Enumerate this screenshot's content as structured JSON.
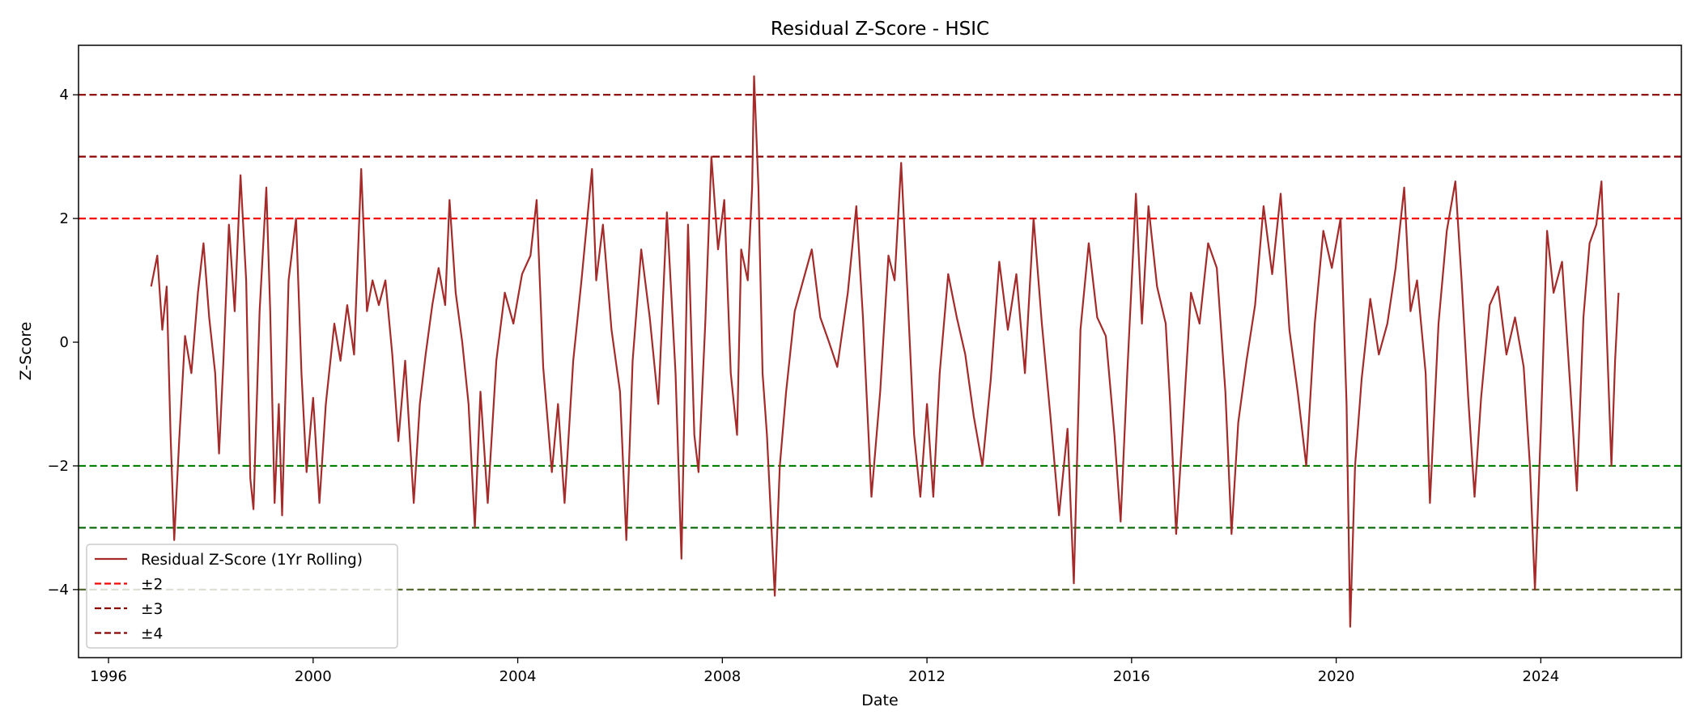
{
  "chart_data": {
    "type": "line",
    "title": "Residual Z-Score - HSIC",
    "xlabel": "Date",
    "ylabel": "Z-Score",
    "xlim": [
      "1995-06-01",
      "2026-10-01"
    ],
    "ylim": [
      -5.1,
      4.8
    ],
    "x_ticks": [
      "1996",
      "2000",
      "2004",
      "2008",
      "2012",
      "2016",
      "2020",
      "2024"
    ],
    "y_ticks": [
      4,
      2,
      0,
      -2,
      -4
    ],
    "y_tick_labels": [
      "4",
      "2",
      "0",
      "−2",
      "−4"
    ],
    "grid": false,
    "legend_position": "lower-left",
    "series": [
      {
        "name": "Residual Z-Score (1Yr Rolling)",
        "color": "#a52a2a",
        "points": [
          [
            "1996-11-01",
            0.9
          ],
          [
            "1996-12-15",
            1.4
          ],
          [
            "1997-01-20",
            0.2
          ],
          [
            "1997-02-20",
            0.9
          ],
          [
            "1997-03-20",
            -1.5
          ],
          [
            "1997-04-15",
            -3.2
          ],
          [
            "1997-05-20",
            -1.6
          ],
          [
            "1997-07-01",
            0.1
          ],
          [
            "1997-08-15",
            -0.5
          ],
          [
            "1997-10-01",
            0.8
          ],
          [
            "1997-11-10",
            1.6
          ],
          [
            "1997-12-20",
            0.4
          ],
          [
            "1998-02-01",
            -0.5
          ],
          [
            "1998-03-01",
            -1.8
          ],
          [
            "1998-04-01",
            -0.3
          ],
          [
            "1998-05-10",
            1.9
          ],
          [
            "1998-06-20",
            0.5
          ],
          [
            "1998-08-01",
            2.7
          ],
          [
            "1998-09-10",
            1.0
          ],
          [
            "1998-10-10",
            -2.2
          ],
          [
            "1998-11-01",
            -2.7
          ],
          [
            "1998-12-15",
            0.5
          ],
          [
            "1999-02-01",
            2.5
          ],
          [
            "1999-03-01",
            0.5
          ],
          [
            "1999-04-01",
            -2.6
          ],
          [
            "1999-05-01",
            -1.0
          ],
          [
            "1999-05-25",
            -2.8
          ],
          [
            "1999-07-10",
            1.0
          ],
          [
            "1999-09-01",
            2.0
          ],
          [
            "1999-10-10",
            -0.5
          ],
          [
            "1999-11-15",
            -2.1
          ],
          [
            "2000-01-01",
            -0.9
          ],
          [
            "2000-02-15",
            -2.6
          ],
          [
            "2000-04-01",
            -1.0
          ],
          [
            "2000-06-01",
            0.3
          ],
          [
            "2000-07-15",
            -0.3
          ],
          [
            "2000-09-01",
            0.6
          ],
          [
            "2000-10-20",
            -0.2
          ],
          [
            "2000-12-10",
            2.8
          ],
          [
            "2001-01-20",
            0.5
          ],
          [
            "2001-03-01",
            1.0
          ],
          [
            "2001-04-15",
            0.6
          ],
          [
            "2001-06-01",
            1.0
          ],
          [
            "2001-07-20",
            -0.2
          ],
          [
            "2001-09-01",
            -1.6
          ],
          [
            "2001-10-20",
            -0.3
          ],
          [
            "2001-12-20",
            -2.6
          ],
          [
            "2002-02-01",
            -1.0
          ],
          [
            "2002-03-15",
            -0.2
          ],
          [
            "2002-05-01",
            0.6
          ],
          [
            "2002-06-15",
            1.2
          ],
          [
            "2002-08-01",
            0.6
          ],
          [
            "2002-09-01",
            2.3
          ],
          [
            "2002-10-15",
            0.8
          ],
          [
            "2002-12-01",
            0.0
          ],
          [
            "2003-01-15",
            -1.0
          ],
          [
            "2003-03-01",
            -3.0
          ],
          [
            "2003-04-10",
            -0.8
          ],
          [
            "2003-06-01",
            -2.6
          ],
          [
            "2003-08-01",
            -0.3
          ],
          [
            "2003-10-01",
            0.8
          ],
          [
            "2003-12-01",
            0.3
          ],
          [
            "2004-02-01",
            1.1
          ],
          [
            "2004-04-01",
            1.4
          ],
          [
            "2004-05-15",
            2.3
          ],
          [
            "2004-07-01",
            -0.4
          ],
          [
            "2004-09-01",
            -2.1
          ],
          [
            "2004-10-15",
            -1.0
          ],
          [
            "2004-12-01",
            -2.6
          ],
          [
            "2005-02-01",
            -0.3
          ],
          [
            "2005-04-01",
            1.0
          ],
          [
            "2005-06-15",
            2.8
          ],
          [
            "2005-07-15",
            1.0
          ],
          [
            "2005-09-01",
            1.9
          ],
          [
            "2005-11-01",
            0.2
          ],
          [
            "2006-01-01",
            -0.8
          ],
          [
            "2006-02-15",
            -3.2
          ],
          [
            "2006-04-01",
            -0.3
          ],
          [
            "2006-06-01",
            1.5
          ],
          [
            "2006-08-01",
            0.4
          ],
          [
            "2006-10-01",
            -1.0
          ],
          [
            "2006-12-01",
            2.1
          ],
          [
            "2007-02-01",
            -0.5
          ],
          [
            "2007-03-15",
            -3.5
          ],
          [
            "2007-05-01",
            1.9
          ],
          [
            "2007-06-15",
            -1.5
          ],
          [
            "2007-07-15",
            -2.1
          ],
          [
            "2007-09-01",
            0.3
          ],
          [
            "2007-10-15",
            3.0
          ],
          [
            "2007-12-01",
            1.5
          ],
          [
            "2008-01-15",
            2.3
          ],
          [
            "2008-03-01",
            -0.5
          ],
          [
            "2008-04-15",
            -1.5
          ],
          [
            "2008-05-15",
            1.5
          ],
          [
            "2008-07-01",
            1.0
          ],
          [
            "2008-08-01",
            2.5
          ],
          [
            "2008-08-15",
            4.3
          ],
          [
            "2008-09-15",
            2.5
          ],
          [
            "2008-10-15",
            -0.5
          ],
          [
            "2008-11-15",
            -1.5
          ],
          [
            "2009-01-10",
            -4.1
          ],
          [
            "2009-02-15",
            -2.0
          ],
          [
            "2009-04-01",
            -0.8
          ],
          [
            "2009-06-01",
            0.5
          ],
          [
            "2009-08-01",
            1.0
          ],
          [
            "2009-10-01",
            1.5
          ],
          [
            "2009-12-01",
            0.4
          ],
          [
            "2010-02-01",
            0.0
          ],
          [
            "2010-04-01",
            -0.4
          ],
          [
            "2010-06-15",
            0.8
          ],
          [
            "2010-08-15",
            2.2
          ],
          [
            "2010-10-01",
            0.4
          ],
          [
            "2010-12-01",
            -2.5
          ],
          [
            "2011-02-01",
            -0.8
          ],
          [
            "2011-04-01",
            1.4
          ],
          [
            "2011-05-15",
            1.0
          ],
          [
            "2011-07-01",
            2.9
          ],
          [
            "2011-08-15",
            0.8
          ],
          [
            "2011-10-01",
            -1.5
          ],
          [
            "2011-11-15",
            -2.5
          ],
          [
            "2012-01-01",
            -1.0
          ],
          [
            "2012-02-15",
            -2.5
          ],
          [
            "2012-04-01",
            -0.5
          ],
          [
            "2012-06-01",
            1.1
          ],
          [
            "2012-08-01",
            0.4
          ],
          [
            "2012-10-01",
            -0.2
          ],
          [
            "2012-12-01",
            -1.2
          ],
          [
            "2013-02-01",
            -2.0
          ],
          [
            "2013-04-01",
            -0.6
          ],
          [
            "2013-06-01",
            1.3
          ],
          [
            "2013-08-01",
            0.2
          ],
          [
            "2013-10-01",
            1.1
          ],
          [
            "2013-12-01",
            -0.5
          ],
          [
            "2014-02-01",
            2.0
          ],
          [
            "2014-04-01",
            0.3
          ],
          [
            "2014-06-01",
            -1.2
          ],
          [
            "2014-08-01",
            -2.8
          ],
          [
            "2014-10-01",
            -1.4
          ],
          [
            "2014-11-15",
            -3.9
          ],
          [
            "2015-01-01",
            0.2
          ],
          [
            "2015-03-01",
            1.6
          ],
          [
            "2015-05-01",
            0.4
          ],
          [
            "2015-07-01",
            0.1
          ],
          [
            "2015-09-01",
            -1.5
          ],
          [
            "2015-10-15",
            -2.9
          ],
          [
            "2015-12-01",
            -0.5
          ],
          [
            "2016-02-01",
            2.4
          ],
          [
            "2016-03-15",
            0.3
          ],
          [
            "2016-05-01",
            2.2
          ],
          [
            "2016-07-01",
            0.9
          ],
          [
            "2016-09-01",
            0.3
          ],
          [
            "2016-10-01",
            -0.9
          ],
          [
            "2016-11-15",
            -3.1
          ],
          [
            "2017-01-01",
            -1.4
          ],
          [
            "2017-03-01",
            0.8
          ],
          [
            "2017-05-01",
            0.3
          ],
          [
            "2017-07-01",
            1.6
          ],
          [
            "2017-09-01",
            1.2
          ],
          [
            "2017-11-01",
            -0.8
          ],
          [
            "2017-12-15",
            -3.1
          ],
          [
            "2018-02-01",
            -1.3
          ],
          [
            "2018-04-01",
            -0.3
          ],
          [
            "2018-06-01",
            0.6
          ],
          [
            "2018-08-01",
            2.2
          ],
          [
            "2018-10-01",
            1.1
          ],
          [
            "2018-12-01",
            2.4
          ],
          [
            "2019-02-01",
            0.2
          ],
          [
            "2019-04-01",
            -0.8
          ],
          [
            "2019-06-01",
            -2.0
          ],
          [
            "2019-08-01",
            0.3
          ],
          [
            "2019-10-01",
            1.8
          ],
          [
            "2019-12-01",
            1.2
          ],
          [
            "2020-02-01",
            2.0
          ],
          [
            "2020-03-15",
            -1.0
          ],
          [
            "2020-04-10",
            -4.6
          ],
          [
            "2020-05-15",
            -2.0
          ],
          [
            "2020-07-01",
            -0.6
          ],
          [
            "2020-09-01",
            0.7
          ],
          [
            "2020-11-01",
            -0.2
          ],
          [
            "2021-01-01",
            0.3
          ],
          [
            "2021-03-01",
            1.2
          ],
          [
            "2021-05-01",
            2.5
          ],
          [
            "2021-06-15",
            0.5
          ],
          [
            "2021-08-01",
            1.0
          ],
          [
            "2021-10-01",
            -0.5
          ],
          [
            "2021-11-01",
            -2.6
          ],
          [
            "2022-01-01",
            0.3
          ],
          [
            "2022-03-01",
            1.8
          ],
          [
            "2022-05-01",
            2.6
          ],
          [
            "2022-06-15",
            1.0
          ],
          [
            "2022-08-01",
            -0.9
          ],
          [
            "2022-09-15",
            -2.5
          ],
          [
            "2022-11-01",
            -0.9
          ],
          [
            "2023-01-01",
            0.6
          ],
          [
            "2023-03-01",
            0.9
          ],
          [
            "2023-05-01",
            -0.2
          ],
          [
            "2023-07-01",
            0.4
          ],
          [
            "2023-09-01",
            -0.4
          ],
          [
            "2023-10-15",
            -2.0
          ],
          [
            "2023-11-20",
            -4.0
          ],
          [
            "2024-01-01",
            -1.4
          ],
          [
            "2024-02-15",
            1.8
          ],
          [
            "2024-04-01",
            0.8
          ],
          [
            "2024-06-01",
            1.3
          ],
          [
            "2024-08-01",
            -0.8
          ],
          [
            "2024-09-15",
            -2.4
          ],
          [
            "2024-11-01",
            0.4
          ],
          [
            "2024-12-15",
            1.6
          ],
          [
            "2025-02-01",
            1.9
          ],
          [
            "2025-03-10",
            2.6
          ],
          [
            "2025-04-15",
            0.2
          ],
          [
            "2025-05-20",
            -2.0
          ],
          [
            "2025-06-15",
            -0.3
          ],
          [
            "2025-07-10",
            0.8
          ]
        ]
      }
    ],
    "reference_lines": [
      {
        "y": 2,
        "color": "#ff0000",
        "legend": "±2"
      },
      {
        "y": 3,
        "color": "#8b0000",
        "legend": "±3"
      },
      {
        "y": 4,
        "color": "#8b0000",
        "legend": "±4"
      },
      {
        "y": -2,
        "color": "#008000"
      },
      {
        "y": -3,
        "color": "#006400"
      },
      {
        "y": -4,
        "color": "#556b2f"
      }
    ]
  }
}
